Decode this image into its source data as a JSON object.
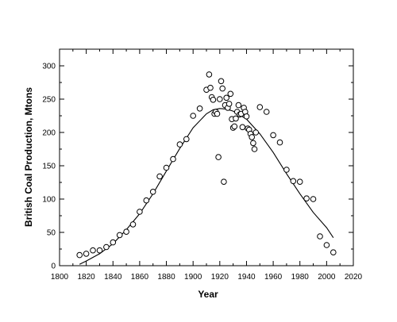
{
  "chart_data": {
    "type": "scatter",
    "xlabel": "Year",
    "ylabel": "British Coal Production, Mtons",
    "xlim": [
      1800,
      2020
    ],
    "ylim": [
      0,
      325
    ],
    "x_ticks": [
      1800,
      1820,
      1840,
      1860,
      1880,
      1900,
      1920,
      1940,
      1960,
      1980,
      2000,
      2020
    ],
    "y_ticks": [
      0,
      50,
      100,
      150,
      200,
      250,
      300
    ],
    "grid": false,
    "series": [
      {
        "kind": "points",
        "marker": "open-circle",
        "x": [
          1815,
          1820,
          1825,
          1830,
          1835,
          1840,
          1845,
          1850,
          1855,
          1860,
          1865,
          1870,
          1875,
          1880,
          1885,
          1890,
          1895,
          1900,
          1905,
          1910,
          1912,
          1913,
          1914,
          1915,
          1916,
          1917,
          1918,
          1919,
          1920,
          1921,
          1922,
          1923,
          1924,
          1925,
          1926,
          1927,
          1928,
          1929,
          1930,
          1931,
          1932,
          1933,
          1934,
          1935,
          1936,
          1937,
          1938,
          1939,
          1940,
          1941,
          1942,
          1943,
          1944,
          1945,
          1946,
          1947,
          1950,
          1955,
          1960,
          1965,
          1970,
          1975,
          1980,
          1985,
          1990,
          1995,
          2000,
          2005
        ],
        "y": [
          16,
          18,
          23,
          23,
          28,
          35,
          46,
          51,
          62,
          81,
          98,
          111,
          134,
          147,
          160,
          182,
          190,
          225,
          236,
          264,
          287,
          267,
          253,
          249,
          228,
          231,
          228,
          163,
          250,
          277,
          266,
          126,
          241,
          252,
          237,
          243,
          258,
          220,
          207,
          209,
          221,
          231,
          241,
          227,
          228,
          208,
          237,
          231,
          224,
          206,
          204,
          198,
          193,
          184,
          175,
          200,
          238,
          231,
          196,
          185,
          144,
          127,
          126,
          101,
          100,
          44,
          31,
          20
        ]
      },
      {
        "kind": "fitted-curve",
        "x": [
          1815,
          1820,
          1830,
          1840,
          1850,
          1860,
          1870,
          1880,
          1890,
          1900,
          1910,
          1915,
          1920,
          1925,
          1930,
          1940,
          1950,
          1960,
          1970,
          1980,
          1990,
          2000,
          2005
        ],
        "y": [
          2,
          7,
          18,
          33,
          54,
          78,
          108,
          142,
          176,
          207,
          228,
          234,
          236,
          235,
          232,
          220,
          198,
          170,
          138,
          108,
          80,
          57,
          42
        ]
      }
    ]
  }
}
